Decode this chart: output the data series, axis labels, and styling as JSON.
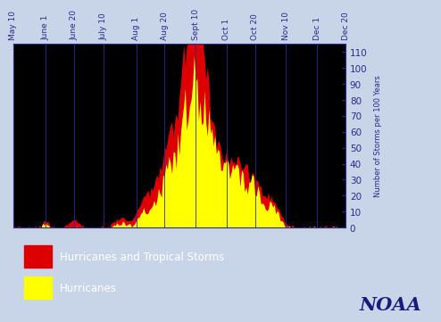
{
  "background_color": "#c8d4e8",
  "plot_bg_color": "#000000",
  "ylabel": "Number of Storms per 100 Years",
  "ylim": [
    0,
    115
  ],
  "yticks": [
    0,
    10,
    20,
    30,
    40,
    50,
    60,
    70,
    80,
    90,
    100,
    110
  ],
  "tick_labels": [
    "May 10",
    "June 1",
    "June 20",
    "July 10",
    "Aug 1",
    "Aug 20",
    "Sept 10",
    "Oct 1",
    "Oct 20",
    "Nov 10",
    "Dec 1",
    "Dec 20"
  ],
  "tick_color": "#2a2a8a",
  "axis_color": "#2a2a8a",
  "legend_labels": [
    "Hurricanes and Tropical Storms",
    "Hurricanes"
  ],
  "noaa_text": "NOAA",
  "noaa_color": "#1a1a7a",
  "red_color": "#dd0000",
  "yellow_color": "#ffff00",
  "total_days": 224,
  "tick_days": [
    0,
    22,
    41,
    61,
    83,
    102,
    123,
    144,
    163,
    184,
    205,
    224
  ]
}
